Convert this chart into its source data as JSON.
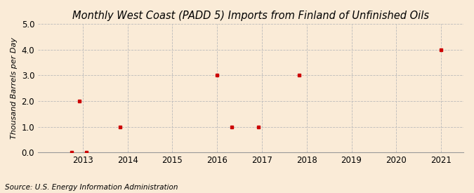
{
  "title": "Monthly West Coast (PADD 5) Imports from Finland of Unfinished Oils",
  "ylabel": "Thousand Barrels per Day",
  "source": "Source: U.S. Energy Information Administration",
  "background_color": "#faebd7",
  "plot_background_color": "#faebd7",
  "data_points_x": [
    2012.75,
    2012.92,
    2013.08,
    2013.83,
    2016.0,
    2016.33,
    2016.92,
    2017.83,
    2021.0
  ],
  "data_points_y": [
    0.0,
    2.0,
    0.0,
    1.0,
    3.0,
    1.0,
    1.0,
    3.0,
    4.0
  ],
  "marker_color": "#cc0000",
  "marker_size": 3.5,
  "xlim": [
    2012.0,
    2021.5
  ],
  "ylim": [
    0.0,
    5.0
  ],
  "yticks": [
    0.0,
    1.0,
    2.0,
    3.0,
    4.0,
    5.0
  ],
  "xticks": [
    2013,
    2014,
    2015,
    2016,
    2017,
    2018,
    2019,
    2020,
    2021
  ],
  "grid_color": "#bbbbbb",
  "grid_linestyle": "--",
  "title_fontsize": 10.5,
  "label_fontsize": 8,
  "tick_fontsize": 8.5,
  "source_fontsize": 7.5
}
